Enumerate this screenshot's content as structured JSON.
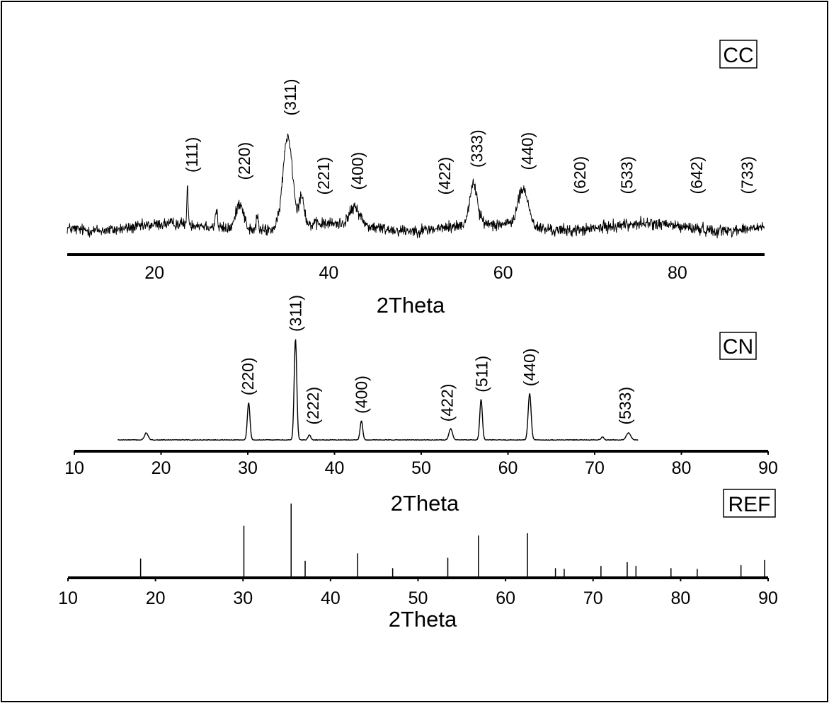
{
  "chart_data": [
    {
      "panel": "CC",
      "type": "line",
      "panel_label": "CC",
      "xlabel": "2Theta",
      "ylabel": "",
      "xlim": [
        10,
        90
      ],
      "xticks": [
        20,
        40,
        60,
        80
      ],
      "x_tick_labels": [
        "20",
        "40",
        "60",
        "80"
      ],
      "noise_amplitude": 0.12,
      "peaks": [
        {
          "x": 23.8,
          "h": 0.7,
          "w": 0.08
        },
        {
          "x": 27.1,
          "h": 0.35,
          "w": 0.12
        },
        {
          "x": 29.8,
          "h": 0.55,
          "w": 0.45
        },
        {
          "x": 31.8,
          "h": 0.3,
          "w": 0.12
        },
        {
          "x": 35.3,
          "h": 1.85,
          "w": 0.55
        },
        {
          "x": 36.9,
          "h": 0.6,
          "w": 0.3
        },
        {
          "x": 43.0,
          "h": 0.35,
          "w": 0.6
        },
        {
          "x": 56.6,
          "h": 0.8,
          "w": 0.45
        },
        {
          "x": 62.3,
          "h": 0.75,
          "w": 0.6
        }
      ],
      "peak_labels": [
        {
          "text": "(111)",
          "x": 24.3
        },
        {
          "text": "(220)",
          "x": 30.3
        },
        {
          "text": "(311)",
          "x": 35.6
        },
        {
          "text": "(221)",
          "x": 39.4
        },
        {
          "text": "(400)",
          "x": 43.3
        },
        {
          "text": "(422)",
          "x": 53.3
        },
        {
          "text": "(333)",
          "x": 57.0
        },
        {
          "text": "(440)",
          "x": 62.8
        },
        {
          "text": "(620)",
          "x": 68.8
        },
        {
          "text": "(533)",
          "x": 74.2
        },
        {
          "text": "(642)",
          "x": 82.2
        },
        {
          "text": "(733)",
          "x": 88.0
        }
      ]
    },
    {
      "panel": "CN",
      "type": "line",
      "panel_label": "CN",
      "xlabel": "2Theta",
      "ylabel": "",
      "xlim": [
        10,
        90
      ],
      "xticks": [
        10,
        20,
        30,
        40,
        50,
        60,
        70,
        80,
        90
      ],
      "x_tick_labels": [
        "10",
        "20",
        "30",
        "40",
        "50",
        "60",
        "70",
        "80",
        "90"
      ],
      "x_range": [
        15,
        75
      ],
      "peaks": [
        {
          "x": 18.3,
          "h": 0.07,
          "w": 0.2
        },
        {
          "x": 30.1,
          "h": 0.37,
          "w": 0.15
        },
        {
          "x": 35.5,
          "h": 1.0,
          "w": 0.15
        },
        {
          "x": 37.1,
          "h": 0.05,
          "w": 0.15
        },
        {
          "x": 43.1,
          "h": 0.19,
          "w": 0.15
        },
        {
          "x": 53.4,
          "h": 0.11,
          "w": 0.2
        },
        {
          "x": 56.9,
          "h": 0.4,
          "w": 0.15
        },
        {
          "x": 62.5,
          "h": 0.46,
          "w": 0.17
        },
        {
          "x": 70.9,
          "h": 0.03,
          "w": 0.15
        },
        {
          "x": 73.9,
          "h": 0.07,
          "w": 0.25
        }
      ],
      "peak_labels": [
        {
          "text": "(220)",
          "x": 30.0
        },
        {
          "text": "(311)",
          "x": 35.5
        },
        {
          "text": "(222)",
          "x": 37.5
        },
        {
          "text": "(400)",
          "x": 43.1
        },
        {
          "text": "(422)",
          "x": 53.0
        },
        {
          "text": "(511)",
          "x": 57.0
        },
        {
          "text": "(440)",
          "x": 62.5
        },
        {
          "text": "(533)",
          "x": 73.5
        }
      ]
    },
    {
      "panel": "REF",
      "type": "bar",
      "panel_label": "REF",
      "xlabel": "2Theta",
      "ylabel": "",
      "xlim": [
        10,
        90
      ],
      "xticks": [
        10,
        20,
        30,
        40,
        50,
        60,
        70,
        80,
        90
      ],
      "x_tick_labels": [
        "10",
        "20",
        "30",
        "40",
        "50",
        "60",
        "70",
        "80",
        "90"
      ],
      "x": [
        18.3,
        30.1,
        35.5,
        37.1,
        43.1,
        47.1,
        53.4,
        56.9,
        62.5,
        65.7,
        66.7,
        70.9,
        73.9,
        74.9,
        78.9,
        81.9,
        86.9,
        89.6
      ],
      "values": [
        26,
        70,
        100,
        23,
        33,
        13,
        27,
        57,
        60,
        13,
        12,
        16,
        21,
        16,
        13,
        12,
        17,
        24
      ]
    }
  ]
}
